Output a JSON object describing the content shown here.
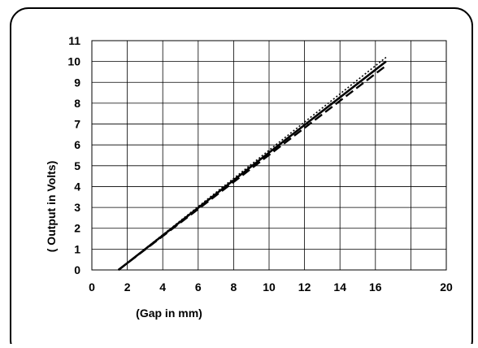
{
  "chart_data": {
    "type": "line",
    "title": "",
    "xlabel": "(Gap in mm)",
    "ylabel": "( Output in Volts)",
    "xlim": [
      0,
      20
    ],
    "ylim": [
      0,
      11
    ],
    "grid": true,
    "legend": "none",
    "xticks": [
      "0",
      "2",
      "4",
      "6",
      "8",
      "10",
      "12",
      "14",
      "16",
      "20"
    ],
    "yticks": [
      "0",
      "1",
      "2",
      "3",
      "4",
      "5",
      "6",
      "7",
      "8",
      "9",
      "10",
      "11"
    ],
    "series": [
      {
        "style": "solid",
        "color": "#000000",
        "x": [
          1.5,
          16.6
        ],
        "y": [
          0,
          10
        ]
      },
      {
        "style": "dashed",
        "color": "#000000",
        "x": [
          1.5,
          16.6
        ],
        "y": [
          0,
          9.8
        ]
      },
      {
        "style": "dotted",
        "color": "#000000",
        "x": [
          1.5,
          16.6
        ],
        "y": [
          0,
          10.2
        ]
      }
    ]
  }
}
